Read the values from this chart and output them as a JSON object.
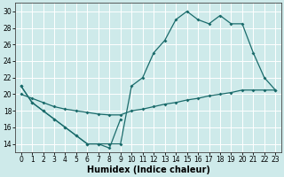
{
  "xlabel": "Humidex (Indice chaleur)",
  "bg_color": "#ceeaea",
  "grid_color": "#b8d8d8",
  "line_color": "#1a6b6b",
  "xlim": [
    -0.5,
    23.5
  ],
  "ylim": [
    13,
    31
  ],
  "yticks": [
    14,
    16,
    18,
    20,
    22,
    24,
    26,
    28,
    30
  ],
  "xticks": [
    0,
    1,
    2,
    3,
    4,
    5,
    6,
    7,
    8,
    9,
    10,
    11,
    12,
    13,
    14,
    15,
    16,
    17,
    18,
    19,
    20,
    21,
    22,
    23
  ],
  "line1_x": [
    0,
    1,
    2,
    3,
    4,
    5,
    6,
    7,
    8,
    9
  ],
  "line1_y": [
    21,
    19,
    18,
    17,
    16,
    15,
    14,
    14,
    13.5,
    17
  ],
  "line2_x": [
    0,
    1,
    2,
    3,
    4,
    5,
    6,
    7,
    8,
    9,
    10,
    11,
    12,
    13,
    14,
    15,
    16,
    17,
    18,
    19,
    20,
    21,
    22,
    23
  ],
  "line2_y": [
    21,
    19,
    18,
    17,
    16,
    15,
    14,
    14,
    14,
    14,
    21,
    22,
    25,
    26.5,
    29,
    30,
    29,
    28.5,
    29.5,
    28.5,
    28.5,
    25,
    22,
    20.5
  ],
  "line3_x": [
    0,
    1,
    2,
    3,
    4,
    5,
    6,
    7,
    8,
    9,
    10,
    11,
    12,
    13,
    14,
    15,
    16,
    17,
    18,
    19,
    20,
    21,
    22,
    23
  ],
  "line3_y": [
    20,
    19.5,
    19,
    18.5,
    18.2,
    18,
    17.8,
    17.6,
    17.5,
    17.5,
    18,
    18.2,
    18.5,
    18.8,
    19,
    19.3,
    19.5,
    19.8,
    20,
    20.2,
    20.5,
    20.5,
    20.5,
    20.5
  ]
}
